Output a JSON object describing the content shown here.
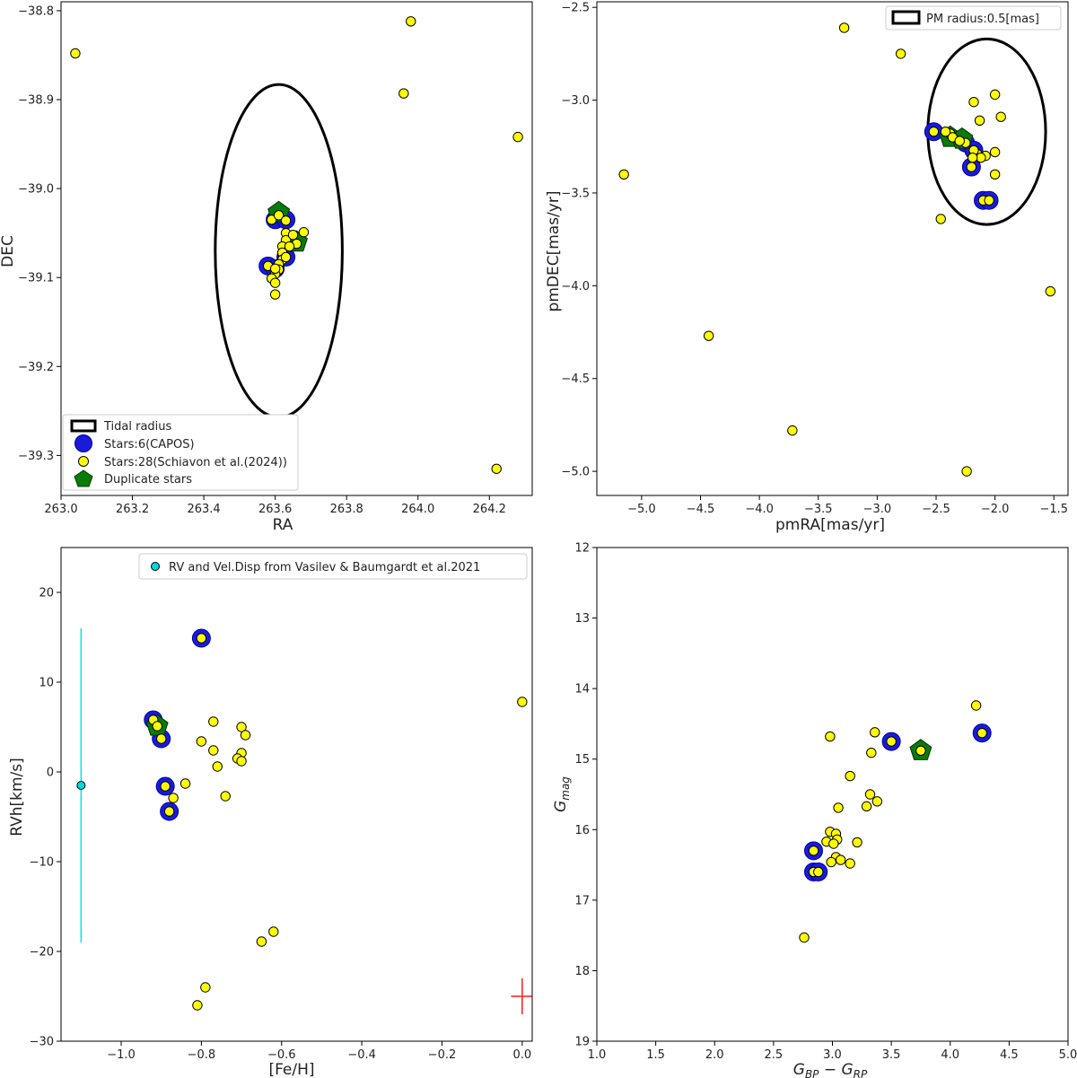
{
  "chart_data": [
    {
      "id": "p1",
      "type": "scatter",
      "xlabel": "RA",
      "ylabel": "DEC",
      "xlim": [
        263.0,
        264.32
      ],
      "ylim": [
        -39.345,
        -38.79
      ],
      "xticks": [
        263.0,
        263.2,
        263.4,
        263.6,
        263.8,
        264.0,
        264.2
      ],
      "yticks": [
        -39.3,
        -39.2,
        -39.1,
        -39.0,
        -38.9,
        -38.8
      ],
      "tick_decimals": [
        1,
        1
      ],
      "ellipse": {
        "cx": 263.61,
        "cy": -39.07,
        "rx": 0.178,
        "ry": 0.187
      },
      "capos": [
        [
          263.6,
          -39.035
        ],
        [
          263.63,
          -39.035
        ],
        [
          263.58,
          -39.087
        ],
        [
          263.6,
          -39.09
        ],
        [
          263.63,
          -39.077
        ]
      ],
      "duplicates": [
        [
          263.61,
          -39.027
        ],
        [
          263.66,
          -39.06
        ]
      ],
      "schiavon": [
        [
          263.04,
          -38.848
        ],
        [
          263.98,
          -38.812
        ],
        [
          263.96,
          -38.893
        ],
        [
          264.28,
          -38.942
        ],
        [
          264.22,
          -39.315
        ],
        [
          263.59,
          -39.035
        ],
        [
          263.61,
          -39.03
        ],
        [
          263.63,
          -39.036
        ],
        [
          263.63,
          -39.05
        ],
        [
          263.63,
          -39.058
        ],
        [
          263.65,
          -39.052
        ],
        [
          263.68,
          -39.049
        ],
        [
          263.66,
          -39.062
        ],
        [
          263.62,
          -39.065
        ],
        [
          263.62,
          -39.072
        ],
        [
          263.62,
          -39.08
        ],
        [
          263.61,
          -39.085
        ],
        [
          263.61,
          -39.091
        ],
        [
          263.6,
          -39.096
        ],
        [
          263.59,
          -39.101
        ],
        [
          263.6,
          -39.106
        ],
        [
          263.6,
          -39.119
        ],
        [
          263.58,
          -39.087
        ],
        [
          263.6,
          -39.09
        ],
        [
          263.63,
          -39.077
        ],
        [
          263.64,
          -39.065
        ]
      ],
      "legend": {
        "position": "lower-left",
        "entries": [
          "Tidal radius",
          "Stars:6(CAPOS)",
          "Stars:28(Schiavon et al.(2024))",
          "Duplicate stars"
        ]
      }
    },
    {
      "id": "p2",
      "type": "scatter",
      "xlabel": "pmRA[mas/yr]",
      "ylabel": "pmDEC[mas/yr]",
      "xlim": [
        -5.38,
        -1.38
      ],
      "ylim": [
        -5.13,
        -2.47
      ],
      "xticks": [
        -5.0,
        -4.5,
        -4.0,
        -3.5,
        -3.0,
        -2.5,
        -2.0,
        -1.5
      ],
      "yticks": [
        -5.0,
        -4.5,
        -4.0,
        -3.5,
        -3.0,
        -2.5
      ],
      "tick_decimals": [
        1,
        1
      ],
      "ellipse": {
        "cx": -2.07,
        "cy": -3.17,
        "rx": 0.5,
        "ry": 0.5
      },
      "capos": [
        [
          -2.52,
          -3.17
        ],
        [
          -2.25,
          -3.23
        ],
        [
          -2.18,
          -3.27
        ],
        [
          -2.2,
          -3.36
        ],
        [
          -2.1,
          -3.54
        ],
        [
          -2.05,
          -3.54
        ]
      ],
      "duplicates": [
        [
          -2.38,
          -3.2
        ],
        [
          -2.28,
          -3.21
        ]
      ],
      "schiavon": [
        [
          -3.28,
          -2.61
        ],
        [
          -2.8,
          -2.75
        ],
        [
          -5.15,
          -3.4
        ],
        [
          -4.43,
          -4.27
        ],
        [
          -3.72,
          -4.78
        ],
        [
          -2.24,
          -5.0
        ],
        [
          -1.53,
          -4.03
        ],
        [
          -2.46,
          -3.64
        ],
        [
          -2.18,
          -3.01
        ],
        [
          -2.0,
          -2.97
        ],
        [
          -1.95,
          -3.09
        ],
        [
          -2.13,
          -3.11
        ],
        [
          -2.0,
          -3.28
        ],
        [
          -2.0,
          -3.4
        ],
        [
          -2.08,
          -3.3
        ],
        [
          -2.15,
          -3.29
        ],
        [
          -2.38,
          -3.18
        ],
        [
          -2.52,
          -3.17
        ],
        [
          -2.25,
          -3.23
        ],
        [
          -2.18,
          -3.27
        ],
        [
          -2.2,
          -3.36
        ],
        [
          -2.1,
          -3.54
        ],
        [
          -2.05,
          -3.54
        ],
        [
          -2.36,
          -3.2
        ],
        [
          -2.3,
          -3.22
        ],
        [
          -2.42,
          -3.17
        ],
        [
          -2.12,
          -3.31
        ],
        [
          -2.19,
          -3.31
        ]
      ],
      "legend": {
        "position": "top-right",
        "entries": [
          "PM radius:0.5[mas]"
        ]
      }
    },
    {
      "id": "p3",
      "type": "scatter",
      "xlabel": "[Fe/H]",
      "ylabel": "RVh[km/s]",
      "xlim": [
        -1.15,
        0.025
      ],
      "ylim": [
        -30,
        25
      ],
      "xticks": [
        -1.0,
        -0.8,
        -0.6,
        -0.4,
        -0.2,
        0.0
      ],
      "yticks": [
        -30,
        -20,
        -10,
        0,
        10,
        20
      ],
      "tick_decimals": [
        1,
        0
      ],
      "reference": {
        "feh": -1.1,
        "rv": -1.5,
        "err_low": -19,
        "err_high": 16
      },
      "error_cross": {
        "feh": 0.0,
        "rv": -25.0,
        "dx": 0.01,
        "dy": 2.0
      },
      "capos": [
        [
          -0.8,
          14.9
        ],
        [
          -0.92,
          5.8
        ],
        [
          -0.9,
          3.7
        ],
        [
          -0.89,
          -1.6
        ],
        [
          -0.88,
          -4.4
        ]
      ],
      "duplicates": [
        [
          -0.91,
          5.1
        ]
      ],
      "schiavon": [
        [
          -0.8,
          14.9
        ],
        [
          -0.92,
          5.8
        ],
        [
          -0.91,
          5.1
        ],
        [
          -0.9,
          3.7
        ],
        [
          -0.89,
          -1.6
        ],
        [
          -0.88,
          -4.4
        ],
        [
          -0.87,
          -2.9
        ],
        [
          -0.84,
          -1.3
        ],
        [
          -0.8,
          3.4
        ],
        [
          -0.77,
          5.6
        ],
        [
          -0.77,
          2.4
        ],
        [
          -0.76,
          0.6
        ],
        [
          -0.74,
          -2.7
        ],
        [
          -0.7,
          5.0
        ],
        [
          -0.69,
          4.1
        ],
        [
          -0.7,
          2.1
        ],
        [
          -0.71,
          1.5
        ],
        [
          -0.7,
          1.2
        ],
        [
          -0.65,
          -18.9
        ],
        [
          -0.62,
          -17.8
        ],
        [
          -0.79,
          -24.0
        ],
        [
          -0.81,
          -26.0
        ],
        [
          0.0,
          7.8
        ]
      ],
      "legend": {
        "position": "top-right",
        "entries": [
          "RV and Vel.Disp from Vasilev & Baumgardt et al.2021"
        ]
      }
    },
    {
      "id": "p4",
      "type": "scatter",
      "xlabel": "G_BP − G_RP",
      "xlabel_main": "G",
      "xlabel_sub1": "BP",
      "xlabel_sep": " − G",
      "xlabel_sub2": "RP",
      "ylabel_main": "G",
      "ylabel_sub": "mag",
      "xlim": [
        1.0,
        5.0
      ],
      "ylim": [
        19,
        12
      ],
      "xticks": [
        1.0,
        1.5,
        2.0,
        2.5,
        3.0,
        3.5,
        4.0,
        4.5,
        5.0
      ],
      "yticks": [
        12,
        13,
        14,
        15,
        16,
        17,
        18,
        19
      ],
      "tick_decimals": [
        1,
        0
      ],
      "capos": [
        [
          3.5,
          14.75
        ],
        [
          4.27,
          14.63
        ],
        [
          2.84,
          16.3
        ],
        [
          2.84,
          16.6
        ],
        [
          2.88,
          16.6
        ]
      ],
      "duplicates": [
        [
          3.75,
          14.88
        ]
      ],
      "schiavon": [
        [
          4.22,
          14.24
        ],
        [
          3.36,
          14.62
        ],
        [
          2.98,
          14.68
        ],
        [
          3.33,
          14.91
        ],
        [
          3.15,
          15.24
        ],
        [
          3.32,
          15.5
        ],
        [
          3.38,
          15.6
        ],
        [
          3.29,
          15.67
        ],
        [
          3.05,
          15.69
        ],
        [
          2.98,
          16.03
        ],
        [
          3.03,
          16.06
        ],
        [
          3.04,
          16.14
        ],
        [
          2.95,
          16.17
        ],
        [
          3.01,
          16.2
        ],
        [
          3.21,
          16.18
        ],
        [
          3.03,
          16.39
        ],
        [
          3.07,
          16.43
        ],
        [
          2.99,
          16.46
        ],
        [
          3.15,
          16.48
        ],
        [
          2.76,
          17.53
        ],
        [
          3.5,
          14.75
        ],
        [
          4.27,
          14.63
        ],
        [
          3.75,
          14.88
        ],
        [
          2.84,
          16.3
        ],
        [
          2.84,
          16.6
        ],
        [
          2.88,
          16.6
        ]
      ]
    }
  ]
}
